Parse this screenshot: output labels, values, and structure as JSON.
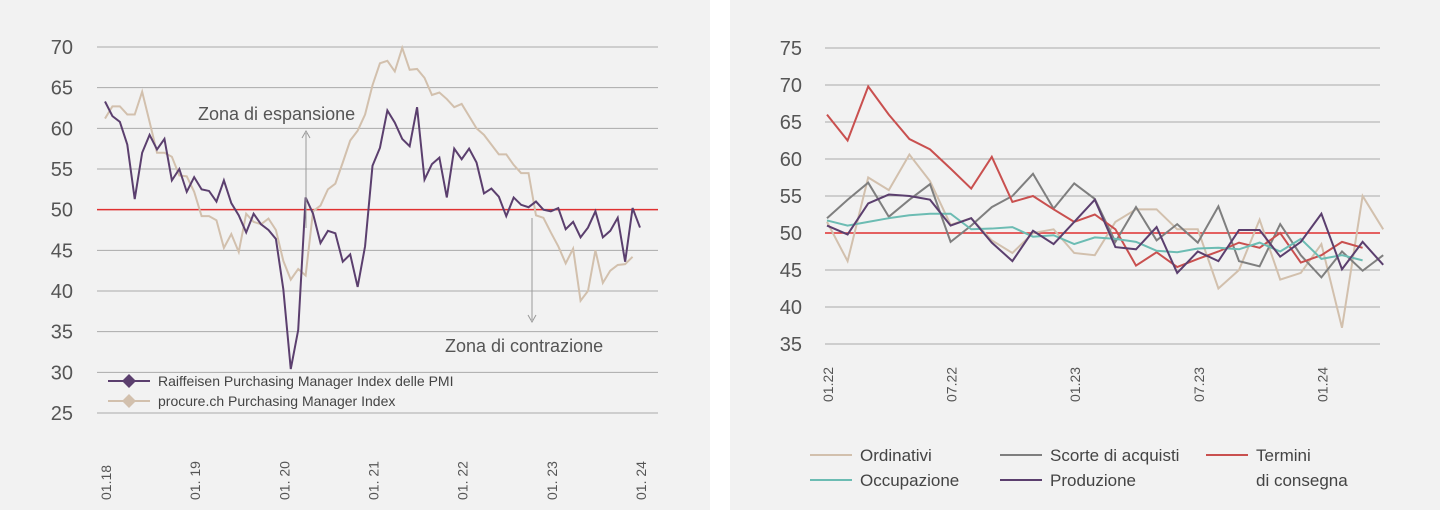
{
  "chart_data": [
    {
      "type": "line",
      "ylim": [
        25,
        70
      ],
      "yticks": [
        25,
        30,
        35,
        40,
        45,
        50,
        55,
        60,
        65,
        70
      ],
      "xticks": [
        "01.18",
        "01. 19",
        "01. 20",
        "01. 21",
        "01. 22",
        "01. 23",
        "01. 24"
      ],
      "x_start": "01.18",
      "reference_line": 50,
      "annotations": [
        "Zona di espansione",
        "Zona di contrazione"
      ],
      "series": [
        {
          "name": "Raiffeisen Purchasing Manager Index delle PMI",
          "color": "#5b3f6e",
          "marker": "diamond",
          "values": [
            63.3,
            61.5,
            60.8,
            58,
            51.3,
            57,
            59.2,
            57.4,
            58.7,
            53.6,
            55,
            52.2,
            54,
            52.5,
            52.3,
            51,
            53.6,
            50.8,
            49.3,
            47.2,
            49.5,
            48.2,
            47.5,
            46.4,
            40.2,
            30.4,
            35.2,
            51.5,
            49.5,
            45.9,
            47.4,
            47.1,
            43.6,
            44.5,
            40.5,
            45.5,
            55.4,
            57.6,
            62.2,
            60.7,
            58.7,
            57.8,
            62.6,
            53.7,
            55.6,
            56.4,
            51.5,
            57.5,
            56.2,
            57.5,
            55.8,
            52,
            52.6,
            51.6,
            49.2,
            51.5,
            50.6,
            50.3,
            51,
            50,
            49.8,
            50.2,
            47.6,
            48.5,
            46.6,
            47.8,
            49.8,
            46.6,
            47.4,
            49,
            43.6,
            50.2,
            47.8
          ]
        },
        {
          "name": "procure.ch Purchasing Manager Index",
          "color": "#d2c0ad",
          "marker": "diamond",
          "values": [
            61.2,
            62.7,
            62.7,
            61.7,
            61.7,
            64.5,
            60.8,
            57,
            57,
            56.5,
            54.2,
            54.1,
            52.2,
            49.2,
            49.2,
            48.7,
            45.3,
            47,
            44.8,
            49.5,
            48.5,
            48.2,
            48.9,
            47.5,
            43.7,
            41.4,
            42.7,
            41.9,
            49.8,
            50.5,
            52.5,
            53.2,
            55.8,
            58.5,
            59.7,
            61.7,
            65.3,
            68,
            68.3,
            67,
            69.9,
            67.2,
            67.3,
            66.2,
            64.1,
            64.4,
            63.6,
            62.6,
            63,
            61.5,
            60,
            59.2,
            58,
            56.8,
            56.8,
            55.5,
            54.5,
            54.5,
            49.3,
            49,
            47.2,
            45.5,
            43.4,
            45.2,
            38.8,
            40,
            45,
            41,
            42.5,
            43.2,
            43.3,
            44.2
          ]
        }
      ]
    },
    {
      "type": "line",
      "ylim": [
        35,
        75
      ],
      "yticks": [
        35,
        40,
        45,
        50,
        55,
        60,
        65,
        70,
        75
      ],
      "xticks": [
        "01.22",
        "07.22",
        "01.23",
        "07.23",
        "01.24"
      ],
      "x_start": "01.22",
      "reference_line": 50,
      "series": [
        {
          "name": "Ordinativi",
          "color": "#d2c0ad",
          "values": [
            51.5,
            46.2,
            57.5,
            55.8,
            60.6,
            57,
            51.1,
            52,
            49,
            47.3,
            50,
            50.5,
            47.3,
            47,
            51.5,
            53.2,
            53.2,
            50.5,
            50.5,
            42.5,
            45,
            51.8,
            43.7,
            44.6,
            48.5,
            37.2,
            55,
            50.5
          ]
        },
        {
          "name": "Scorte di acquisti",
          "color": "#7f7f7f",
          "values": [
            52,
            54.5,
            56.8,
            52.2,
            54.5,
            56.6,
            48.8,
            51,
            53.5,
            55,
            58,
            53.3,
            56.7,
            54.6,
            48.8,
            53.5,
            49,
            51.2,
            48.7,
            53.6,
            46.2,
            45.5,
            51.2,
            47,
            44,
            47.5,
            44.9,
            47
          ]
        },
        {
          "name": "Termini di consegna",
          "color": "#c9504f",
          "values": [
            66,
            62.5,
            69.8,
            66,
            62.7,
            61.3,
            58.7,
            56,
            60.3,
            54.2,
            55,
            53.2,
            51.5,
            52.5,
            50.5,
            45.6,
            47.4,
            45.4,
            46.5,
            47.5,
            48.7,
            48,
            50,
            46,
            47,
            48.8,
            48
          ]
        },
        {
          "name": "Occupazione",
          "color": "#6cbcb3",
          "values": [
            51.7,
            51,
            51.5,
            52,
            52.4,
            52.6,
            52.6,
            50.5,
            50.6,
            50.8,
            49.5,
            49.7,
            48.5,
            49.4,
            49.2,
            48.8,
            47.6,
            47.4,
            47.9,
            48,
            47.8,
            48.7,
            47.5,
            49.2,
            46.5,
            47,
            46.3
          ]
        },
        {
          "name": "Produzione",
          "color": "#5b3f6e",
          "values": [
            51,
            49.8,
            54,
            55.2,
            55,
            54.5,
            51,
            52,
            48.7,
            46.2,
            50.3,
            48.5,
            51.5,
            54.5,
            48.1,
            47.8,
            50.8,
            44.6,
            47.5,
            46.2,
            50.4,
            50.4,
            46.8,
            48.8,
            52.6,
            45.1,
            48.8,
            45.7
          ]
        }
      ]
    }
  ]
}
